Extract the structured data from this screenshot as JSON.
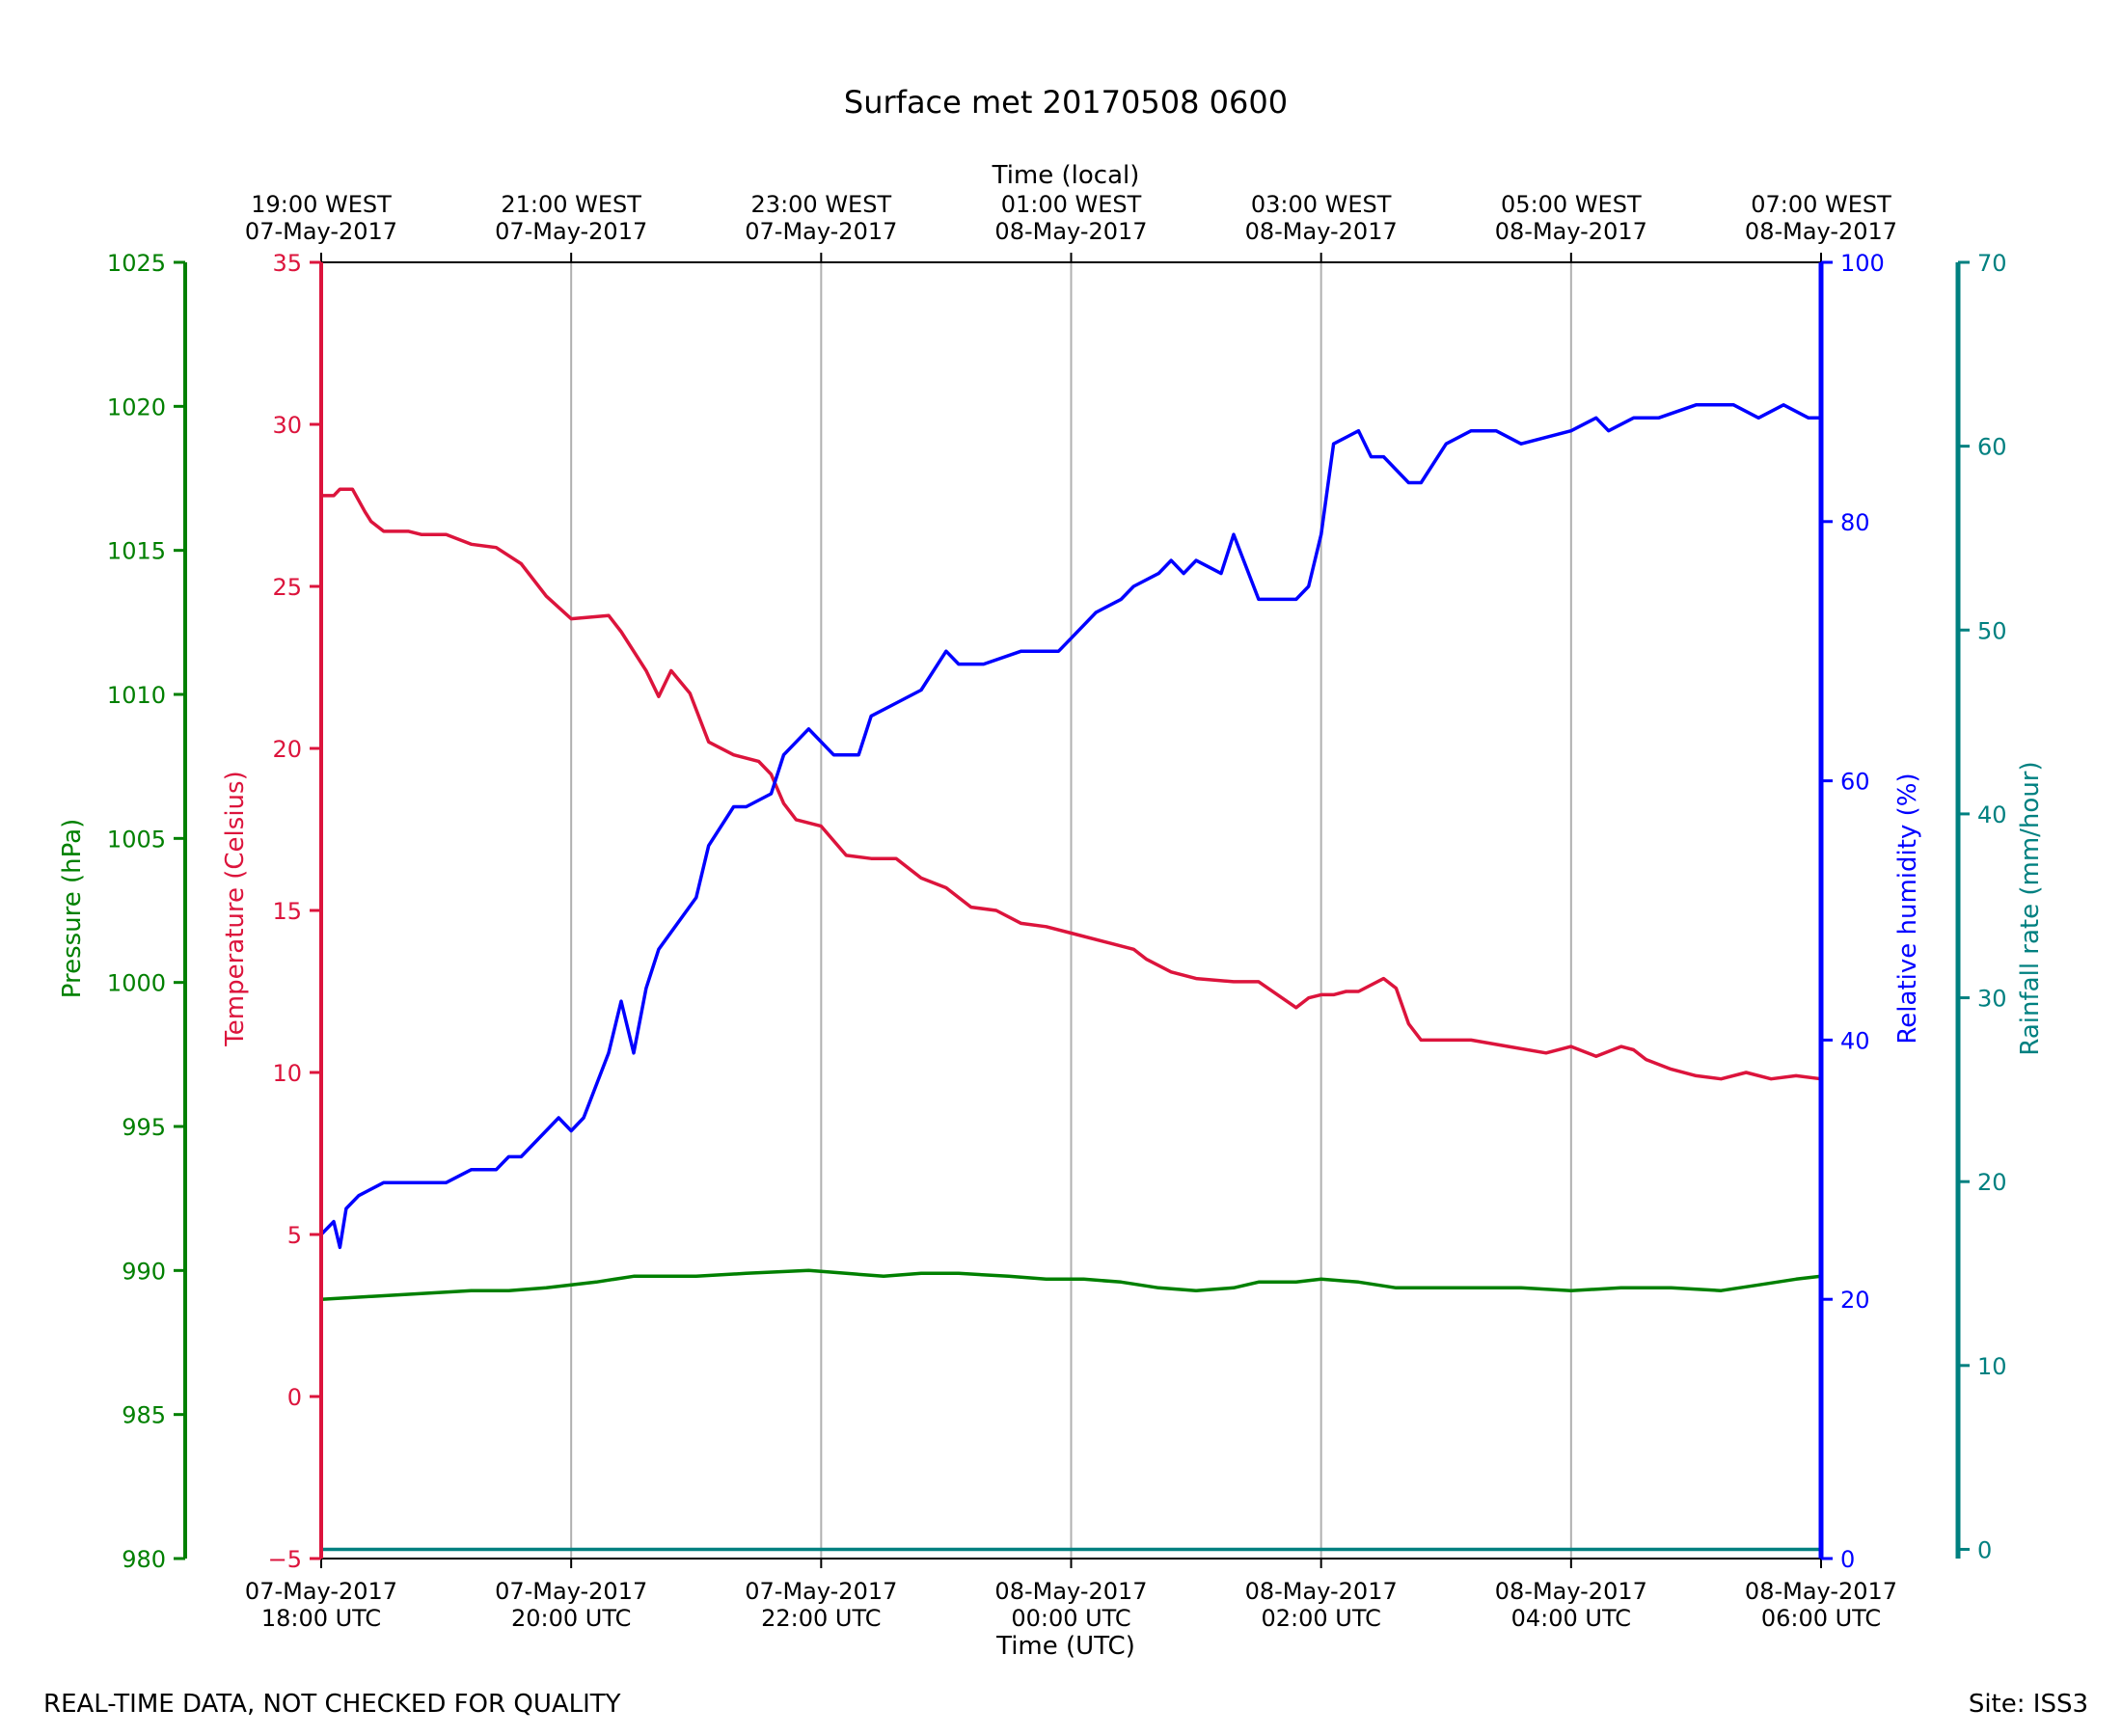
{
  "chart_data": {
    "type": "line",
    "title": "Surface met 20170508 0600",
    "top_axis_label": "Time (local)",
    "xlabel": "Time (UTC)",
    "footer_left": "REAL-TIME DATA, NOT CHECKED FOR QUALITY",
    "footer_right": "Site: ISS3",
    "x_range_hours": [
      0,
      12
    ],
    "x_ticks": [
      0,
      2,
      4,
      6,
      8,
      10,
      12
    ],
    "bottom_tick_labels": [
      [
        "07-May-2017",
        "18:00 UTC"
      ],
      [
        "07-May-2017",
        "20:00 UTC"
      ],
      [
        "07-May-2017",
        "22:00 UTC"
      ],
      [
        "08-May-2017",
        "00:00 UTC"
      ],
      [
        "08-May-2017",
        "02:00 UTC"
      ],
      [
        "08-May-2017",
        "04:00 UTC"
      ],
      [
        "08-May-2017",
        "06:00 UTC"
      ]
    ],
    "top_tick_labels": [
      [
        "19:00 WEST",
        "07-May-2017"
      ],
      [
        "21:00 WEST",
        "07-May-2017"
      ],
      [
        "23:00 WEST",
        "07-May-2017"
      ],
      [
        "01:00 WEST",
        "08-May-2017"
      ],
      [
        "03:00 WEST",
        "08-May-2017"
      ],
      [
        "05:00 WEST",
        "08-May-2017"
      ],
      [
        "07:00 WEST",
        "08-May-2017"
      ]
    ],
    "grid": "vertical",
    "axes": {
      "pressure": {
        "label": "Pressure (hPa)",
        "range": [
          980,
          1025
        ],
        "ticks": [
          "980",
          "985",
          "990",
          "995",
          "1000",
          "1005",
          "1010",
          "1015",
          "1020",
          "1025"
        ],
        "color": "#008000"
      },
      "temperature": {
        "label": "Temperature (Celsius)",
        "range": [
          -5,
          35
        ],
        "ticks": [
          "−5",
          "0",
          "5",
          "10",
          "15",
          "20",
          "25",
          "30",
          "35"
        ],
        "color": "#dc143c"
      },
      "humidity": {
        "label": "Relative humidity (%)",
        "range": [
          0,
          100
        ],
        "ticks": [
          "0",
          "20",
          "40",
          "60",
          "80",
          "100"
        ],
        "color": "#0000ff"
      },
      "rainfall": {
        "label": "Rainfall rate (mm/hour)",
        "range": [
          -0.5,
          70
        ],
        "ticks": [
          "0",
          "10",
          "20",
          "30",
          "40",
          "50",
          "60",
          "70"
        ],
        "color": "#008080"
      }
    },
    "series": [
      {
        "name": "Temperature (Celsius)",
        "axis": "temperature",
        "color": "#dc143c",
        "x": [
          0,
          0.1,
          0.15,
          0.25,
          0.35,
          0.4,
          0.5,
          0.6,
          0.7,
          0.8,
          1.0,
          1.2,
          1.4,
          1.6,
          1.8,
          2.0,
          2.3,
          2.4,
          2.6,
          2.7,
          2.8,
          2.95,
          3.1,
          3.3,
          3.5,
          3.6,
          3.7,
          3.8,
          4.0,
          4.2,
          4.4,
          4.6,
          4.8,
          5.0,
          5.2,
          5.4,
          5.6,
          5.8,
          6.0,
          6.3,
          6.5,
          6.6,
          6.8,
          7.0,
          7.3,
          7.5,
          7.8,
          7.9,
          8.0,
          8.1,
          8.2,
          8.3,
          8.5,
          8.6,
          8.7,
          8.8,
          8.9,
          9.0,
          9.2,
          9.5,
          9.8,
          10.0,
          10.2,
          10.4,
          10.5,
          10.6,
          10.8,
          11.0,
          11.2,
          11.4,
          11.6,
          11.8,
          12.0
        ],
        "y": [
          27.8,
          27.8,
          28.0,
          28.0,
          27.3,
          27.0,
          26.7,
          26.7,
          26.7,
          26.6,
          26.6,
          26.3,
          26.2,
          25.7,
          24.7,
          24.0,
          24.1,
          23.6,
          22.4,
          21.6,
          22.4,
          21.7,
          20.2,
          19.8,
          19.6,
          19.2,
          18.3,
          17.8,
          17.6,
          16.7,
          16.6,
          16.6,
          16.0,
          15.7,
          15.1,
          15.0,
          14.6,
          14.5,
          14.3,
          14.0,
          13.8,
          13.5,
          13.1,
          12.9,
          12.8,
          12.8,
          12.0,
          12.3,
          12.4,
          12.4,
          12.5,
          12.5,
          12.9,
          12.6,
          11.5,
          11.0,
          11.0,
          11.0,
          11.0,
          10.8,
          10.6,
          10.8,
          10.5,
          10.8,
          10.7,
          10.4,
          10.1,
          9.9,
          9.8,
          10.0,
          9.8,
          9.9,
          9.8
        ],
        "values_note": "estimated from plot"
      },
      {
        "name": "Relative humidity (%)",
        "axis": "humidity",
        "color": "#0000ff",
        "x": [
          0,
          0.1,
          0.15,
          0.2,
          0.3,
          0.5,
          0.8,
          1.0,
          1.2,
          1.4,
          1.5,
          1.6,
          1.7,
          1.9,
          2.0,
          2.1,
          2.3,
          2.4,
          2.5,
          2.6,
          2.7,
          3.0,
          3.1,
          3.3,
          3.4,
          3.6,
          3.7,
          3.8,
          3.9,
          4.1,
          4.3,
          4.4,
          4.6,
          4.8,
          5.0,
          5.1,
          5.3,
          5.6,
          5.9,
          6.0,
          6.2,
          6.4,
          6.5,
          6.7,
          6.8,
          6.9,
          7.0,
          7.2,
          7.3,
          7.5,
          7.8,
          7.9,
          8.0,
          8.1,
          8.3,
          8.4,
          8.5,
          8.7,
          8.8,
          9.0,
          9.2,
          9.4,
          9.6,
          10.0,
          10.2,
          10.3,
          10.5,
          10.7,
          11.0,
          11.3,
          11.5,
          11.7,
          11.9,
          12.0
        ],
        "y": [
          25,
          26,
          24,
          27,
          28,
          29,
          29,
          29,
          30,
          30,
          31,
          31,
          32,
          34,
          33,
          34,
          39,
          43,
          39,
          44,
          47,
          51,
          55,
          58,
          58,
          59,
          62,
          63,
          64,
          62,
          62,
          65,
          66,
          67,
          70,
          69,
          69,
          70,
          70,
          71,
          73,
          74,
          75,
          76,
          77,
          76,
          77,
          76,
          79,
          74,
          74,
          75,
          79,
          86,
          87,
          85,
          85,
          83,
          83,
          86,
          87,
          87,
          86,
          87,
          88,
          87,
          88,
          88,
          89,
          89,
          88,
          89,
          88,
          88
        ],
        "values_note": "estimated from plot"
      },
      {
        "name": "Pressure (hPa)",
        "axis": "pressure",
        "color": "#008000",
        "x": [
          0,
          0.4,
          0.8,
          1.2,
          1.5,
          1.8,
          2.0,
          2.2,
          2.5,
          2.8,
          3.0,
          3.4,
          3.9,
          4.2,
          4.5,
          4.8,
          5.1,
          5.5,
          5.8,
          6.1,
          6.4,
          6.7,
          7.0,
          7.3,
          7.5,
          7.8,
          8.0,
          8.3,
          8.6,
          9.0,
          9.4,
          9.6,
          10.0,
          10.4,
          10.8,
          11.2,
          11.5,
          11.8,
          12.0
        ],
        "y": [
          989.0,
          989.1,
          989.2,
          989.3,
          989.3,
          989.4,
          989.5,
          989.6,
          989.8,
          989.8,
          989.8,
          989.9,
          990.0,
          989.9,
          989.8,
          989.9,
          989.9,
          989.8,
          989.7,
          989.7,
          989.6,
          989.4,
          989.3,
          989.4,
          989.6,
          989.6,
          989.7,
          989.6,
          989.4,
          989.4,
          989.4,
          989.4,
          989.3,
          989.4,
          989.4,
          989.3,
          989.5,
          989.7,
          989.8
        ],
        "values_note": "estimated from plot"
      },
      {
        "name": "Rainfall rate (mm/hour)",
        "axis": "rainfall",
        "color": "#008080",
        "x": [
          0,
          12
        ],
        "y": [
          0,
          0
        ]
      }
    ]
  }
}
